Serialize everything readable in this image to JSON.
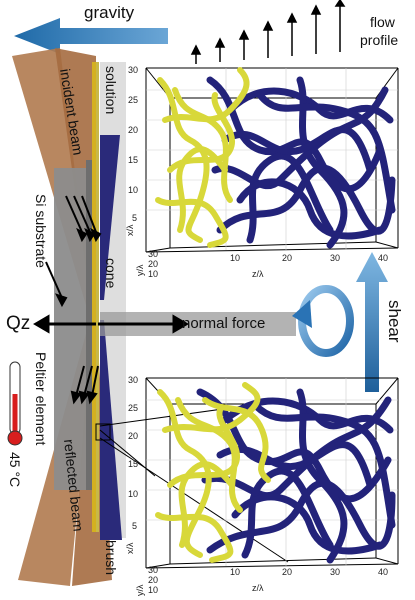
{
  "labels": {
    "gravity": "gravity",
    "flow_profile_line1": "flow",
    "flow_profile_line2": "profile",
    "solution": "solution",
    "incident_beam": "incident beam",
    "si_substrate": "Si substrate",
    "cone": "cone",
    "qz": "Qz",
    "normal_force": "normal force",
    "shear": "shear",
    "peltier_element": "Peltier element",
    "temperature": "45 °C",
    "reflected_beam": "reflected beam",
    "brush": "brush"
  },
  "plot_top": {
    "x_ticks": [
      "10",
      "20",
      "30",
      "40"
    ],
    "x_axis_label": "z/λ",
    "y_ticks": [
      "30",
      "25",
      "20",
      "15",
      "10",
      "5"
    ],
    "x_axis_side_label": "x/λ",
    "depth_ticks": [
      "30",
      "20",
      "10"
    ],
    "depth_label": "y/λ"
  },
  "plot_bottom": {
    "x_ticks": [
      "10",
      "20",
      "30",
      "40"
    ],
    "x_axis_label": "z/λ",
    "y_ticks": [
      "30",
      "25",
      "20",
      "15",
      "10",
      "5"
    ],
    "x_axis_side_label": "x/λ",
    "depth_ticks": [
      "30",
      "20",
      "10"
    ],
    "depth_label": "y/λ"
  },
  "colors": {
    "gravity_arrow": "#2f7bb5",
    "beam": "#b07a4f",
    "cone": "#2a2a7a",
    "substrate": "#8a8a8a",
    "gold_strip": "#d4b020",
    "brush_yellow": "#e6e64a",
    "brush_blue": "#23237a",
    "shear_blue": "#3a86c8",
    "thermometer_red": "#d81e1e"
  }
}
